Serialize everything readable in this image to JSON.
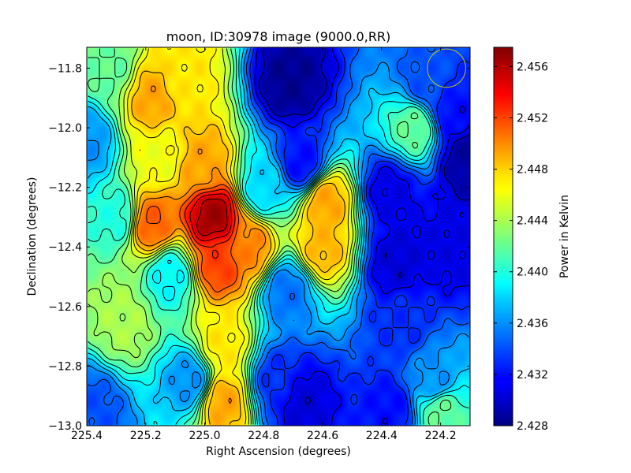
{
  "chart_data": {
    "type": "heatmap",
    "title": "moon, ID:30978 image (9000.0,RR)",
    "xlabel": "Right Ascension (degrees)",
    "ylabel": "Declination (degrees)",
    "colorbar_label": "Power in Kelvin",
    "colormap": "jet",
    "contours": true,
    "xlim": [
      225.4,
      224.1
    ],
    "ylim": [
      -13.0,
      -11.73
    ],
    "x_ticks": [
      225.4,
      225.2,
      225.0,
      224.8,
      224.6,
      224.4,
      224.2
    ],
    "x_tick_labels": [
      "225.4",
      "225.2",
      "225.0",
      "224.8",
      "224.6",
      "224.4",
      "224.2"
    ],
    "y_ticks": [
      -11.8,
      -12.0,
      -12.2,
      -12.4,
      -12.6,
      -12.8,
      -13.0
    ],
    "y_tick_labels": [
      "−11.8",
      "−12.0",
      "−12.2",
      "−12.4",
      "−12.6",
      "−12.8",
      "−13.0"
    ],
    "clim": [
      2.428,
      2.4575
    ],
    "colorbar_ticks": [
      2.456,
      2.452,
      2.448,
      2.444,
      2.44,
      2.436,
      2.432,
      2.428
    ],
    "colorbar_tick_labels": [
      "2.456",
      "2.452",
      "2.448",
      "2.444",
      "2.440",
      "2.436",
      "2.432",
      "2.428"
    ],
    "features": [
      {
        "ra": 224.97,
        "dec": -12.3,
        "value": 2.4565
      },
      {
        "ra": 224.95,
        "dec": -12.45,
        "value": 2.452
      },
      {
        "ra": 224.85,
        "dec": -12.4,
        "value": 2.45
      },
      {
        "ra": 225.01,
        "dec": -12.13,
        "value": 2.449
      },
      {
        "ra": 225.18,
        "dec": -12.32,
        "value": 2.451
      },
      {
        "ra": 225.18,
        "dec": -11.9,
        "value": 2.449
      },
      {
        "ra": 225.15,
        "dec": -12.1,
        "value": 2.446
      },
      {
        "ra": 224.59,
        "dec": -12.25,
        "value": 2.449
      },
      {
        "ra": 224.6,
        "dec": -12.4,
        "value": 2.4485
      },
      {
        "ra": 224.94,
        "dec": -12.92,
        "value": 2.449
      },
      {
        "ra": 224.94,
        "dec": -12.73,
        "value": 2.447
      },
      {
        "ra": 225.07,
        "dec": -11.83,
        "value": 2.447
      },
      {
        "ra": 225.27,
        "dec": -12.65,
        "value": 2.444
      },
      {
        "ra": 224.71,
        "dec": -11.85,
        "value": 2.4285
      },
      {
        "ra": 224.67,
        "dec": -12.12,
        "value": 2.432
      },
      {
        "ra": 224.72,
        "dec": -12.55,
        "value": 2.435
      },
      {
        "ra": 224.67,
        "dec": -12.92,
        "value": 2.4305
      },
      {
        "ra": 224.75,
        "dec": -12.85,
        "value": 2.433
      },
      {
        "ra": 224.37,
        "dec": -12.22,
        "value": 2.431
      },
      {
        "ra": 224.35,
        "dec": -12.45,
        "value": 2.4305
      },
      {
        "ra": 224.33,
        "dec": -12.65,
        "value": 2.433
      },
      {
        "ra": 224.37,
        "dec": -12.95,
        "value": 2.432
      },
      {
        "ra": 224.16,
        "dec": -11.95,
        "value": 2.432
      },
      {
        "ra": 224.11,
        "dec": -12.1,
        "value": 2.429
      },
      {
        "ra": 224.17,
        "dec": -12.4,
        "value": 2.431
      },
      {
        "ra": 224.22,
        "dec": -12.85,
        "value": 2.436
      },
      {
        "ra": 224.25,
        "dec": -11.85,
        "value": 2.434
      },
      {
        "ra": 225.38,
        "dec": -12.95,
        "value": 2.434
      },
      {
        "ra": 225.4,
        "dec": -12.05,
        "value": 2.436
      },
      {
        "ra": 225.05,
        "dec": -12.85,
        "value": 2.436
      },
      {
        "ra": 225.12,
        "dec": -12.5,
        "value": 2.439
      },
      {
        "ra": 224.29,
        "dec": -12.0,
        "value": 2.442
      },
      {
        "ra": 224.2,
        "dec": -12.95,
        "value": 2.442
      },
      {
        "ra": 224.8,
        "dec": -12.2,
        "value": 2.438
      },
      {
        "ra": 225.3,
        "dec": -12.3,
        "value": 2.44
      },
      {
        "ra": 225.32,
        "dec": -11.8,
        "value": 2.442
      }
    ],
    "overlay_circle": {
      "ra": 224.18,
      "dec": -11.8,
      "radius_deg": 0.065,
      "color": "#c8c800"
    }
  }
}
